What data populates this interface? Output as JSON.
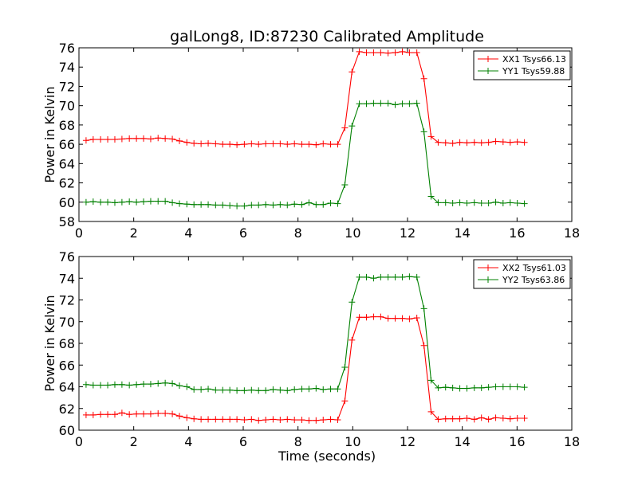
{
  "chart_data": [
    {
      "type": "line",
      "title": "galLong8, ID:87230 Calibrated Amplitude",
      "xlabel": "",
      "ylabel": "Power in Kelvin",
      "xlim": [
        0,
        18
      ],
      "ylim": [
        58,
        76
      ],
      "xticks": [
        0,
        2,
        4,
        6,
        8,
        10,
        12,
        14,
        16,
        18
      ],
      "yticks": [
        58,
        60,
        62,
        64,
        66,
        68,
        70,
        72,
        74,
        76
      ],
      "grid": false,
      "legend_position": "top-right",
      "x": [
        0.26,
        0.52,
        0.79,
        1.05,
        1.31,
        1.57,
        1.84,
        2.1,
        2.36,
        2.62,
        2.89,
        3.15,
        3.41,
        3.67,
        3.94,
        4.2,
        4.46,
        4.72,
        4.99,
        5.25,
        5.51,
        5.77,
        6.04,
        6.3,
        6.56,
        6.82,
        7.09,
        7.35,
        7.61,
        7.87,
        8.14,
        8.4,
        8.66,
        8.92,
        9.19,
        9.45,
        9.71,
        9.97,
        10.24,
        10.5,
        10.76,
        11.02,
        11.29,
        11.55,
        11.81,
        12.07,
        12.34,
        12.6,
        12.86,
        13.12,
        13.39,
        13.65,
        13.91,
        14.17,
        14.44,
        14.7,
        14.96,
        15.22,
        15.49,
        15.75,
        16.01,
        16.27
      ],
      "series": [
        {
          "name": "XX1 Tsys66.13",
          "color": "#ff0000",
          "values": [
            66.4,
            66.5,
            66.5,
            66.5,
            66.5,
            66.55,
            66.6,
            66.6,
            66.6,
            66.55,
            66.65,
            66.6,
            66.55,
            66.35,
            66.2,
            66.1,
            66.05,
            66.1,
            66.05,
            66.0,
            66.0,
            65.95,
            66.0,
            66.05,
            66.0,
            66.05,
            66.05,
            66.05,
            66.0,
            66.05,
            66.0,
            66.0,
            65.95,
            66.05,
            66.0,
            66.0,
            67.7,
            73.5,
            75.6,
            75.5,
            75.5,
            75.5,
            75.45,
            75.5,
            75.6,
            75.5,
            75.5,
            72.8,
            66.8,
            66.2,
            66.15,
            66.1,
            66.2,
            66.15,
            66.2,
            66.15,
            66.2,
            66.3,
            66.25,
            66.2,
            66.25,
            66.2
          ]
        },
        {
          "name": "YY1 Tsys59.88",
          "color": "#008000",
          "values": [
            60.0,
            60.05,
            60.0,
            60.0,
            59.95,
            60.0,
            60.05,
            60.0,
            60.05,
            60.1,
            60.1,
            60.1,
            59.95,
            59.85,
            59.8,
            59.75,
            59.75,
            59.75,
            59.7,
            59.7,
            59.65,
            59.6,
            59.6,
            59.7,
            59.7,
            59.75,
            59.7,
            59.75,
            59.7,
            59.8,
            59.75,
            59.95,
            59.75,
            59.75,
            59.9,
            59.85,
            61.8,
            67.9,
            70.2,
            70.2,
            70.25,
            70.25,
            70.25,
            70.1,
            70.2,
            70.2,
            70.25,
            67.3,
            60.6,
            59.95,
            59.95,
            59.9,
            59.95,
            59.9,
            59.95,
            59.9,
            59.9,
            60.0,
            59.9,
            59.95,
            59.9,
            59.85
          ]
        }
      ]
    },
    {
      "type": "line",
      "title": "",
      "xlabel": "Time (seconds)",
      "ylabel": "Power in Kelvin",
      "xlim": [
        0,
        18
      ],
      "ylim": [
        60,
        76
      ],
      "xticks": [
        0,
        2,
        4,
        6,
        8,
        10,
        12,
        14,
        16,
        18
      ],
      "yticks": [
        60,
        62,
        64,
        66,
        68,
        70,
        72,
        74,
        76
      ],
      "grid": false,
      "legend_position": "top-right",
      "x": [
        0.26,
        0.52,
        0.79,
        1.05,
        1.31,
        1.57,
        1.84,
        2.1,
        2.36,
        2.62,
        2.89,
        3.15,
        3.41,
        3.67,
        3.94,
        4.2,
        4.46,
        4.72,
        4.99,
        5.25,
        5.51,
        5.77,
        6.04,
        6.3,
        6.56,
        6.82,
        7.09,
        7.35,
        7.61,
        7.87,
        8.14,
        8.4,
        8.66,
        8.92,
        9.19,
        9.45,
        9.71,
        9.97,
        10.24,
        10.5,
        10.76,
        11.02,
        11.29,
        11.55,
        11.81,
        12.07,
        12.34,
        12.6,
        12.86,
        13.12,
        13.39,
        13.65,
        13.91,
        14.17,
        14.44,
        14.7,
        14.96,
        15.22,
        15.49,
        15.75,
        16.01,
        16.27
      ],
      "series": [
        {
          "name": "XX2 Tsys61.03",
          "color": "#ff0000",
          "values": [
            61.4,
            61.4,
            61.45,
            61.45,
            61.45,
            61.6,
            61.45,
            61.5,
            61.5,
            61.5,
            61.55,
            61.55,
            61.5,
            61.3,
            61.15,
            61.05,
            61.0,
            61.0,
            61.0,
            61.0,
            61.0,
            61.0,
            60.95,
            61.0,
            60.9,
            60.95,
            61.0,
            60.95,
            61.0,
            60.95,
            60.95,
            60.9,
            60.9,
            60.95,
            61.0,
            60.95,
            62.7,
            68.3,
            70.4,
            70.4,
            70.45,
            70.45,
            70.3,
            70.3,
            70.3,
            70.25,
            70.35,
            67.8,
            61.7,
            61.0,
            61.05,
            61.05,
            61.05,
            61.1,
            61.0,
            61.15,
            61.0,
            61.15,
            61.1,
            61.05,
            61.1,
            61.1
          ]
        },
        {
          "name": "YY2 Tsys63.86",
          "color": "#008000",
          "values": [
            64.2,
            64.15,
            64.15,
            64.15,
            64.2,
            64.2,
            64.15,
            64.2,
            64.25,
            64.25,
            64.3,
            64.35,
            64.3,
            64.1,
            64.0,
            63.75,
            63.75,
            63.8,
            63.7,
            63.7,
            63.7,
            63.65,
            63.65,
            63.7,
            63.65,
            63.65,
            63.75,
            63.7,
            63.65,
            63.75,
            63.8,
            63.8,
            63.85,
            63.75,
            63.8,
            63.8,
            65.8,
            71.8,
            74.1,
            74.1,
            74.0,
            74.1,
            74.1,
            74.1,
            74.1,
            74.15,
            74.1,
            71.2,
            64.6,
            63.9,
            63.95,
            63.9,
            63.85,
            63.85,
            63.9,
            63.9,
            63.95,
            64.0,
            64.0,
            64.0,
            64.0,
            63.95
          ]
        }
      ]
    }
  ]
}
